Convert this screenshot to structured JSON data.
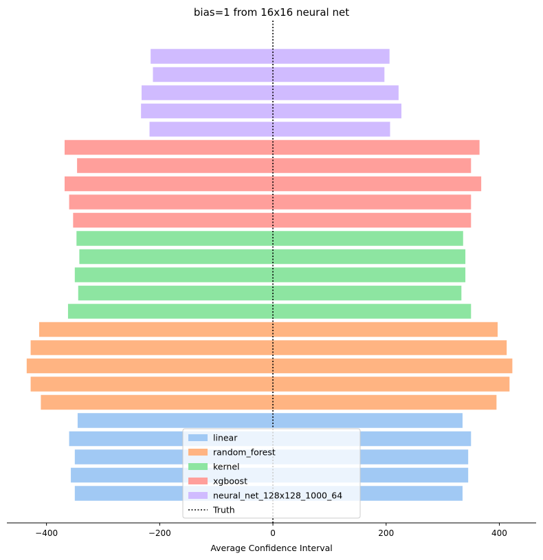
{
  "chart_data": {
    "type": "bar",
    "orientation": "horizontal",
    "title": "bias=1 from 16x16 neural net",
    "xlabel": "Average Confidence Interval",
    "ylabel": "",
    "xlim": [
      -470,
      465
    ],
    "xticks": [
      -400,
      -200,
      0,
      200,
      400
    ],
    "xtick_labels": [
      "−400",
      "−200",
      "0",
      "200",
      "400"
    ],
    "truth_value": 0,
    "legend_position": "lower-center",
    "series": [
      {
        "name": "linear",
        "color": "#a1c9f4",
        "bars": [
          {
            "low": -350,
            "high": 335
          },
          {
            "low": -357,
            "high": 345
          },
          {
            "low": -350,
            "high": 345
          },
          {
            "low": -360,
            "high": 350
          },
          {
            "low": -345,
            "high": 335
          }
        ]
      },
      {
        "name": "random_forest",
        "color": "#ffb482",
        "bars": [
          {
            "low": -410,
            "high": 395
          },
          {
            "low": -428,
            "high": 418
          },
          {
            "low": -435,
            "high": 423
          },
          {
            "low": -428,
            "high": 413
          },
          {
            "low": -413,
            "high": 397
          }
        ]
      },
      {
        "name": "kernel",
        "color": "#8de5a1",
        "bars": [
          {
            "low": -362,
            "high": 350
          },
          {
            "low": -344,
            "high": 333
          },
          {
            "low": -350,
            "high": 340
          },
          {
            "low": -342,
            "high": 340
          },
          {
            "low": -347,
            "high": 336
          }
        ]
      },
      {
        "name": "xgboost",
        "color": "#ff9f9b",
        "bars": [
          {
            "low": -353,
            "high": 350
          },
          {
            "low": -360,
            "high": 350
          },
          {
            "low": -368,
            "high": 368
          },
          {
            "low": -346,
            "high": 350
          },
          {
            "low": -368,
            "high": 365
          }
        ]
      },
      {
        "name": "neural_net_128x128_1000_64",
        "color": "#d0bbff",
        "bars": [
          {
            "low": -218,
            "high": 207
          },
          {
            "low": -233,
            "high": 227
          },
          {
            "low": -232,
            "high": 222
          },
          {
            "low": -212,
            "high": 197
          },
          {
            "low": -216,
            "high": 206
          }
        ]
      }
    ],
    "truth_label": "Truth"
  }
}
